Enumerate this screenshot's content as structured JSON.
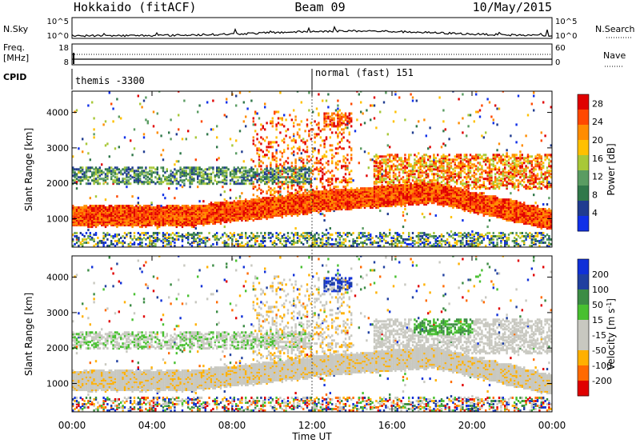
{
  "header": {
    "station": "Hokkaido (fitACF)",
    "beam": "Beam 09",
    "date": "10/May/2015"
  },
  "top_panels": {
    "nsky_label": "N.Sky",
    "nsearch_label": "N.Search",
    "nsky_ticks": [
      "10^5",
      "10^0"
    ],
    "nsearch_ticks": [
      "10^5",
      "10^0"
    ],
    "freq_label": [
      "Freq.",
      "[MHz]"
    ],
    "freq_ticks": [
      "18",
      "8"
    ],
    "nave_label": "Nave",
    "nave_ticks": [
      "60",
      "0"
    ],
    "cpid_label": "CPID",
    "cpid_segments": [
      "themis -3300",
      "normal (fast) 151"
    ]
  },
  "colors": {
    "power_scale": [
      "#1030e8",
      "#203c90",
      "#30784a",
      "#5a9c62",
      "#a8c838",
      "#ffc000",
      "#ff8c00",
      "#ff4800",
      "#e00000"
    ],
    "velocity_scale": [
      "#e00000",
      "#ff6a00",
      "#ffb000",
      "#c8c8c0",
      "#c8c8c0",
      "#48c030",
      "#3c8c44",
      "#2040a0",
      "#1030d8"
    ],
    "background": "#ffffff"
  },
  "chart_data": [
    {
      "type": "heatmap",
      "name": "power",
      "ylabel": "Slant Range [km]",
      "xlabel": "Time UT",
      "x_ticks": [
        "00:00",
        "04:00",
        "08:00",
        "12:00",
        "16:00",
        "20:00",
        "00:00"
      ],
      "x_hours": [
        0,
        4,
        8,
        12,
        16,
        20,
        24
      ],
      "ylim": [
        200,
        4600
      ],
      "y_ticks": [
        1000,
        2000,
        3000,
        4000
      ],
      "colorbar": {
        "label": "Power [dB]",
        "ticks": [
          4,
          8,
          12,
          16,
          20,
          24,
          28
        ],
        "range": [
          0,
          30
        ]
      },
      "features": [
        {
          "t": [
            0,
            24
          ],
          "range_km": [
            800,
            1500
          ],
          "level": "strong-red",
          "note": "main band rising from ~1000 to ~1500 km near 12:00"
        },
        {
          "t": [
            0,
            12
          ],
          "range_km": [
            2000,
            2400
          ],
          "level": "mixed-green-blue"
        },
        {
          "t": [
            9,
            14
          ],
          "range_km": [
            1500,
            4000
          ],
          "level": "orange-red streaks"
        },
        {
          "t": [
            16,
            24
          ],
          "range_km": [
            1800,
            2700
          ],
          "level": "orange-red"
        }
      ]
    },
    {
      "type": "heatmap",
      "name": "velocity",
      "ylabel": "Slant Range [km]",
      "xlabel": "Time UT",
      "x_ticks": [
        "00:00",
        "04:00",
        "08:00",
        "12:00",
        "16:00",
        "20:00",
        "00:00"
      ],
      "x_hours": [
        0,
        4,
        8,
        12,
        16,
        20,
        24
      ],
      "ylim": [
        200,
        4600
      ],
      "y_ticks": [
        1000,
        2000,
        3000,
        4000
      ],
      "colorbar": {
        "label": "Velocity [m s^-1]",
        "ticks": [
          200,
          100,
          50,
          15,
          -15,
          -50,
          -100,
          -200
        ],
        "range": [
          -250,
          250
        ]
      },
      "features": [
        {
          "t": [
            0,
            24
          ],
          "range_km": [
            800,
            1500
          ],
          "level": "grey near zero"
        },
        {
          "t": [
            12.5,
            14
          ],
          "range_km": [
            3600,
            3900
          ],
          "level": "blue positive"
        },
        {
          "t": [
            17,
            20
          ],
          "range_km": [
            2400,
            2800
          ],
          "level": "green positive"
        }
      ]
    }
  ],
  "xaxis_title": "Time UT"
}
